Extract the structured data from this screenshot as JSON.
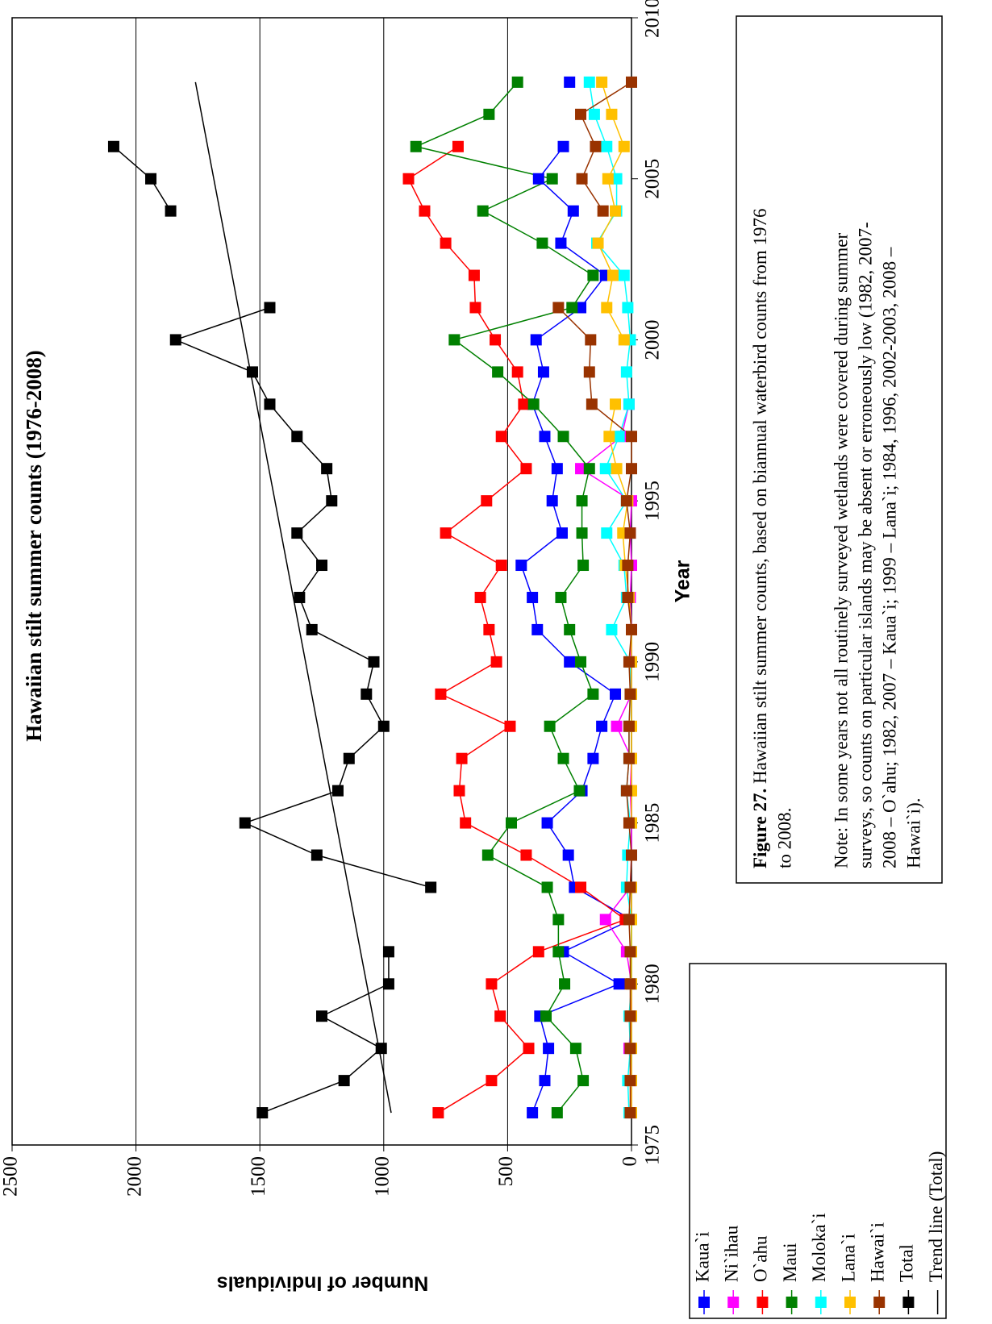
{
  "chart_data": {
    "type": "line",
    "title": "Hawaiian stilt summer counts (1976-2008)",
    "x_label": "Year",
    "y_label": "Number of Individuals",
    "x": [
      1976,
      1977,
      1978,
      1979,
      1980,
      1981,
      1982,
      1983,
      1984,
      1985,
      1986,
      1987,
      1988,
      1989,
      1990,
      1991,
      1992,
      1993,
      1994,
      1995,
      1996,
      1997,
      1998,
      1999,
      2000,
      2001,
      2002,
      2003,
      2004,
      2005,
      2006,
      2007,
      2008
    ],
    "xlim": [
      1975,
      2010
    ],
    "xticks": [
      1975,
      1980,
      1985,
      1990,
      1995,
      2000,
      2005,
      2010
    ],
    "ylim": [
      0,
      2500
    ],
    "yticks": [
      0,
      500,
      1000,
      1500,
      2000,
      2500
    ],
    "grid": true,
    "series": [
      {
        "name": "Kaua`i",
        "color": "#0000ff",
        "values": [
          400,
          350,
          335,
          370,
          50,
          275,
          0,
          230,
          255,
          340,
          200,
          155,
          120,
          65,
          250,
          380,
          400,
          445,
          280,
          320,
          300,
          350,
          400,
          355,
          385,
          205,
          105,
          285,
          235,
          375,
          275,
          null,
          250
        ]
      },
      {
        "name": "Ni`ihau",
        "color": "#ff00ff",
        "values": [
          5,
          0,
          10,
          0,
          0,
          20,
          105,
          5,
          0,
          0,
          5,
          0,
          60,
          0,
          5,
          0,
          5,
          0,
          5,
          0,
          205,
          40,
          10,
          null,
          null,
          null,
          null,
          null,
          null,
          null,
          null,
          null,
          null
        ]
      },
      {
        "name": "O`ahu",
        "color": "#ff0000",
        "values": [
          780,
          565,
          415,
          530,
          565,
          375,
          25,
          205,
          425,
          670,
          695,
          685,
          490,
          770,
          545,
          575,
          610,
          525,
          750,
          585,
          425,
          525,
          435,
          460,
          550,
          630,
          635,
          750,
          835,
          900,
          700,
          null,
          null
        ]
      },
      {
        "name": "Maui",
        "color": "#008000",
        "values": [
          300,
          195,
          225,
          345,
          270,
          295,
          295,
          340,
          580,
          485,
          210,
          275,
          330,
          155,
          205,
          250,
          285,
          195,
          200,
          200,
          170,
          275,
          395,
          540,
          715,
          240,
          155,
          360,
          600,
          320,
          870,
          575,
          460
        ]
      },
      {
        "name": "Moloka`i",
        "color": "#00ffff",
        "values": [
          10,
          15,
          5,
          10,
          0,
          0,
          0,
          20,
          15,
          5,
          20,
          10,
          10,
          5,
          5,
          80,
          20,
          30,
          100,
          20,
          105,
          50,
          10,
          20,
          5,
          15,
          30,
          140,
          60,
          60,
          100,
          150,
          170
        ]
      },
      {
        "name": "Lana`i",
        "color": "#ffc000",
        "values": [
          0,
          0,
          0,
          0,
          0,
          0,
          0,
          0,
          null,
          0,
          0,
          0,
          0,
          0,
          0,
          0,
          10,
          25,
          35,
          15,
          60,
          90,
          65,
          null,
          30,
          100,
          75,
          135,
          65,
          95,
          30,
          80,
          120
        ]
      },
      {
        "name": "Hawai`i",
        "color": "#993300",
        "values": [
          5,
          5,
          5,
          5,
          5,
          5,
          10,
          5,
          0,
          10,
          20,
          10,
          10,
          5,
          10,
          0,
          15,
          15,
          5,
          20,
          0,
          0,
          160,
          170,
          165,
          295,
          null,
          null,
          115,
          200,
          145,
          205,
          0
        ]
      },
      {
        "name": "Total",
        "color": "#000000",
        "values": [
          1490,
          1160,
          1010,
          1250,
          980,
          980,
          null,
          810,
          1270,
          1560,
          1185,
          1140,
          1000,
          1070,
          1040,
          1290,
          1340,
          1250,
          1350,
          1210,
          1230,
          1350,
          1460,
          1530,
          1840,
          1460,
          null,
          null,
          1860,
          1940,
          2090,
          null,
          null
        ]
      }
    ],
    "trend_line": {
      "name": "Trend line (Total)",
      "color": "#000000",
      "x": [
        1976,
        2008
      ],
      "values": [
        970,
        1760
      ]
    }
  },
  "caption": {
    "label": "Figure 27.",
    "lines": [
      "Hawaiian stilt summer counts, based on biannual waterbird counts from 1976",
      "to 2008.",
      "Note: In some years not all routinely surveyed wetlands were covered during summer",
      "surveys, so counts on particular islands may be absent or erroneously low (1982, 2007-",
      "2008 – O`ahu; 1982, 2007 – Kaua`i; 1999 – Lana`i; 1984, 1996, 2002-2003, 2008 –",
      "Hawai`i)."
    ]
  }
}
